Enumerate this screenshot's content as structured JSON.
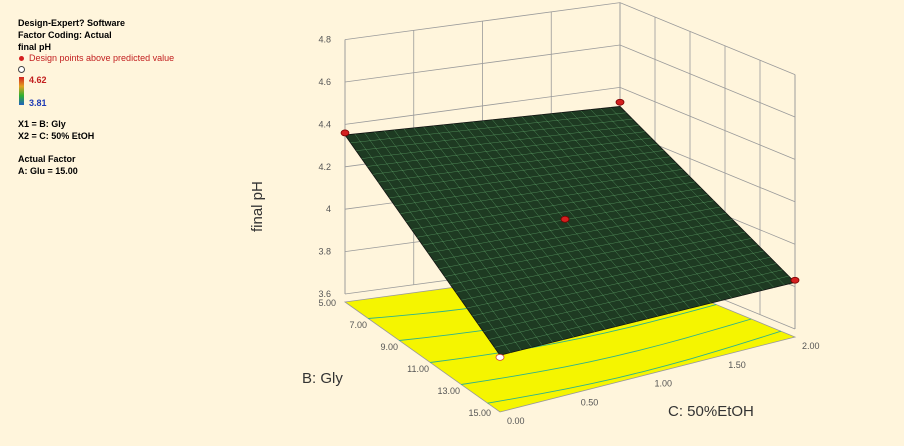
{
  "legend": {
    "software": "Design-Expert? Software",
    "factor_coding": "Factor Coding: Actual",
    "response": "final pH",
    "design_points": "Design points above predicted value",
    "color_max": "4.62",
    "color_min": "3.81",
    "x1": "X1 = B: Gly",
    "x2": "X2 = C: 50% EtOH",
    "actual_factor_title": "Actual Factor",
    "actual_factor": "A: Glu = 15.00"
  },
  "colors": {
    "background": "#FFF5DC",
    "contour_floor": "#F5F500",
    "contour_lines": "#2FB38A",
    "design_point_above": "#D42020",
    "design_point_below": "#FFFFFF",
    "surface_fill": "#1E3A22",
    "surface_grid": "#7FD88A"
  },
  "chart_data": {
    "type": "surface",
    "title": "",
    "zlabel": "final pH",
    "xlabel": "B: Gly",
    "ylabel": "C: 50%EtOH",
    "x_ticks": [
      "5.00",
      "7.00",
      "9.00",
      "11.00",
      "13.00",
      "15.00"
    ],
    "y_ticks": [
      "0.00",
      "0.50",
      "1.00",
      "1.50",
      "2.00"
    ],
    "z_ticks": [
      "3.6",
      "3.8",
      "4",
      "4.2",
      "4.4",
      "4.6",
      "4.8"
    ],
    "xlim": [
      5,
      15
    ],
    "ylim": [
      0,
      2
    ],
    "zlim": [
      3.6,
      4.8
    ],
    "color_range": [
      3.81,
      4.62
    ],
    "surface_corners": [
      {
        "B": 5,
        "C": 0,
        "pH": 4.35
      },
      {
        "B": 5,
        "C": 2,
        "pH": 4.31
      },
      {
        "B": 15,
        "C": 0,
        "pH": 3.83
      },
      {
        "B": 15,
        "C": 2,
        "pH": 3.82
      }
    ],
    "design_points": [
      {
        "B": 5,
        "C": 0,
        "pH": 4.36,
        "position": "above"
      },
      {
        "B": 5,
        "C": 2,
        "pH": 4.33,
        "position": "above"
      },
      {
        "B": 10,
        "C": 1,
        "pH": 4.08,
        "position": "above"
      },
      {
        "B": 15,
        "C": 0,
        "pH": 3.82,
        "position": "below"
      },
      {
        "B": 15,
        "C": 2,
        "pH": 3.83,
        "position": "above"
      }
    ],
    "grid": true
  }
}
